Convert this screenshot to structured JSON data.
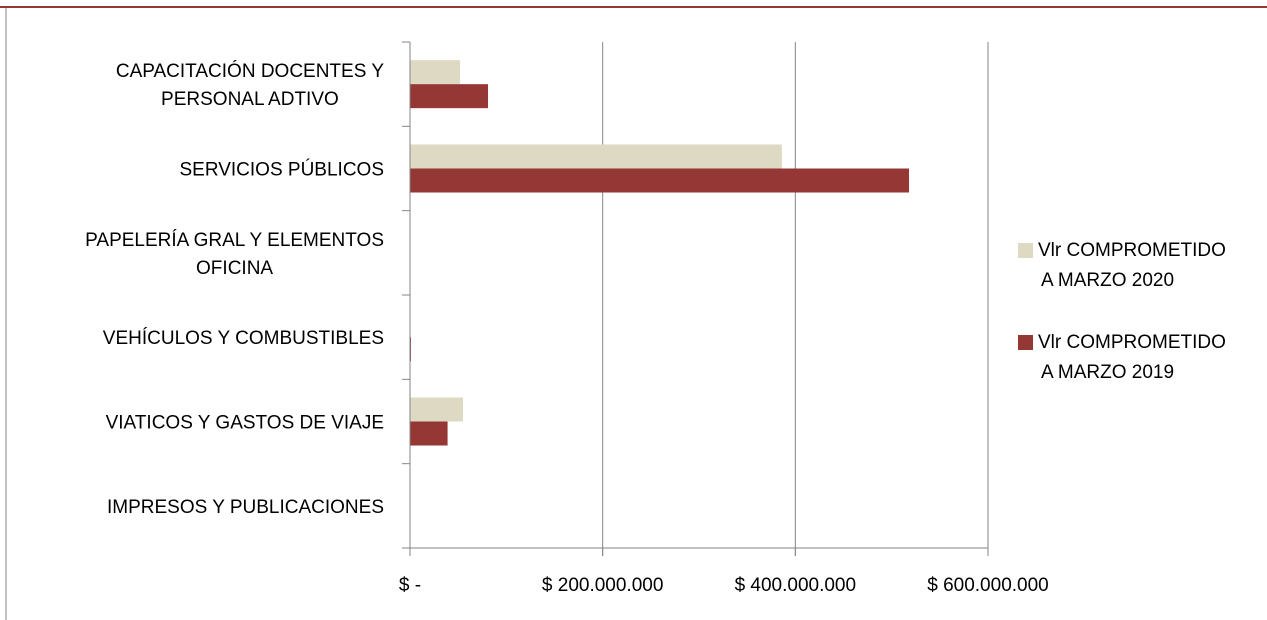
{
  "chart_data": {
    "type": "bar",
    "orientation": "horizontal",
    "categories": [
      [
        "CAPACITACIÓN DOCENTES Y",
        "PERSONAL ADTIVO"
      ],
      [
        "SERVICIOS PÚBLICOS"
      ],
      [
        "PAPELERÍA GRAL Y ELEMENTOS",
        "OFICINA"
      ],
      [
        "VEHÍCULOS Y COMBUSTIBLES"
      ],
      [
        "VIATICOS Y GASTOS DE VIAJE"
      ],
      [
        "IMPRESOS Y PUBLICACIONES"
      ]
    ],
    "series": [
      {
        "name": [
          "Vlr COMPROMETIDO",
          "A MARZO 2020"
        ],
        "color": "#ddd9c3",
        "values": [
          52000000,
          386000000,
          0,
          500000,
          55000000,
          0
        ]
      },
      {
        "name": [
          "Vlr COMPROMETIDO",
          "A MARZO 2019"
        ],
        "color": "#953735",
        "values": [
          81000000,
          518000000,
          0,
          1000000,
          39000000,
          0
        ]
      }
    ],
    "xticks": [
      0,
      200000000,
      400000000,
      600000000
    ],
    "xtick_labels": [
      "$ -",
      "$ 200.000.000",
      "$ 400.000.000",
      "$ 600.000.000"
    ],
    "xlim": [
      0,
      600000000
    ],
    "grid": "vertical",
    "legend_position": "right"
  },
  "colors": {
    "frame_top": "#953735",
    "gridline": "#868686",
    "axis": "#868686"
  }
}
